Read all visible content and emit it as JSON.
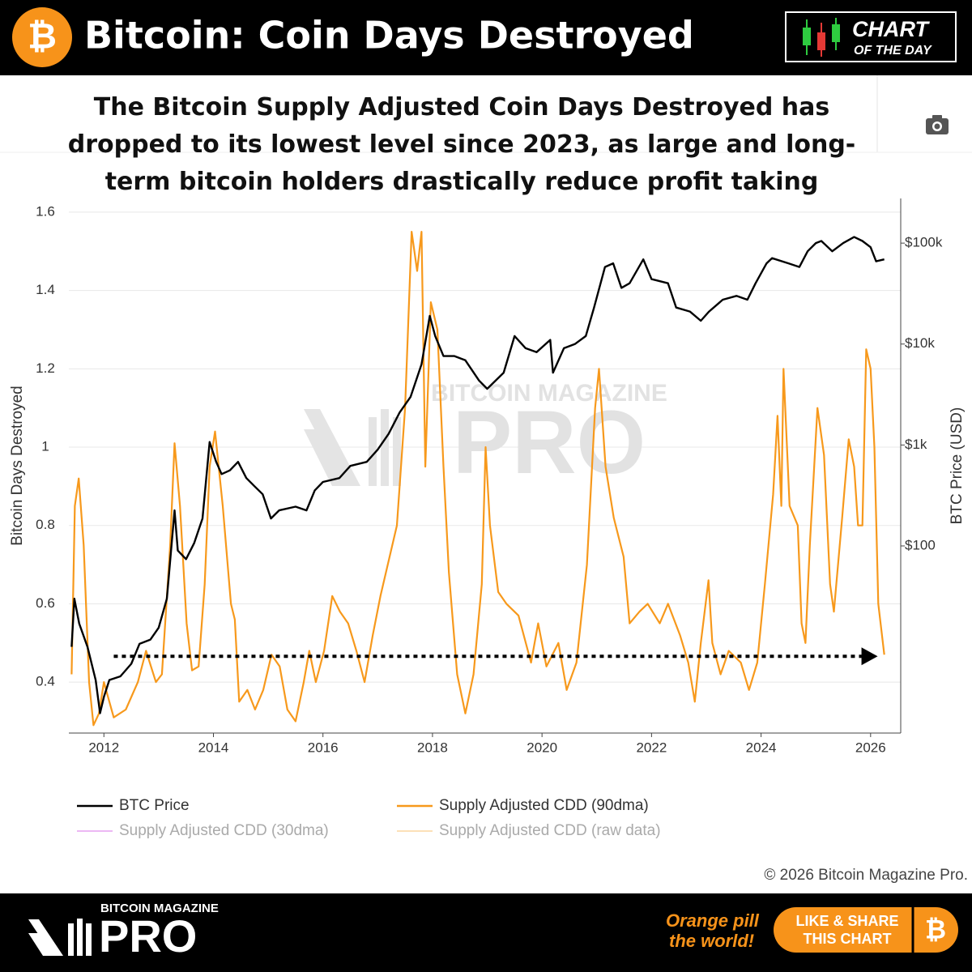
{
  "header": {
    "logo": "₿",
    "title": "Bitcoin: Coin Days Destroyed",
    "badge_line1": "CHART",
    "badge_line2": "OF THE DAY"
  },
  "watermark": {
    "line1": "BITCOIN MAGAZINE",
    "line2": "PRO"
  },
  "chart_data": {
    "type": "line",
    "title": "The Bitcoin Supply Adjusted Coin Days Destroyed has dropped to its lowest level since 2023, as large and long-term bitcoin holders drastically reduce profit taking",
    "ylabel": "Bitcoin Days Destroyed",
    "y2label": "BTC Price (USD)",
    "xlim": [
      2011.36,
      2026.55
    ],
    "xticks": [
      2012,
      2014,
      2016,
      2018,
      2020,
      2022,
      2024,
      2026
    ],
    "ylim": [
      0.27,
      1.635
    ],
    "yticks": [
      0.4,
      0.6,
      0.8,
      1,
      1.2,
      1.4,
      1.6
    ],
    "y2lim": [
      1.4,
      277000
    ],
    "y2log": true,
    "y2ticks": [
      {
        "value": 100,
        "label": "$100"
      },
      {
        "value": 1000,
        "label": "$1k"
      },
      {
        "value": 10000,
        "label": "$10k"
      },
      {
        "value": 100000,
        "label": "$100k"
      }
    ],
    "grid": true,
    "legend": "bottom",
    "series": [
      {
        "name": "BTC Price",
        "color": "#000000",
        "axis": "y2",
        "x": [
          2011.41,
          2011.46,
          2011.55,
          2011.7,
          2011.85,
          2011.93,
          2012.0,
          2012.1,
          2012.3,
          2012.5,
          2012.65,
          2012.85,
          2013.0,
          2013.15,
          2013.29,
          2013.35,
          2013.5,
          2013.65,
          2013.8,
          2013.93,
          2014.05,
          2014.15,
          2014.3,
          2014.45,
          2014.6,
          2014.75,
          2014.9,
          2015.05,
          2015.2,
          2015.5,
          2015.7,
          2015.85,
          2016.0,
          2016.3,
          2016.5,
          2016.8,
          2017.0,
          2017.2,
          2017.4,
          2017.6,
          2017.8,
          2017.95,
          2018.05,
          2018.2,
          2018.4,
          2018.6,
          2018.85,
          2019.0,
          2019.3,
          2019.5,
          2019.7,
          2019.9,
          2020.15,
          2020.2,
          2020.4,
          2020.6,
          2020.8,
          2020.95,
          2021.15,
          2021.3,
          2021.45,
          2021.6,
          2021.85,
          2022.0,
          2022.3,
          2022.45,
          2022.7,
          2022.9,
          2023.05,
          2023.3,
          2023.55,
          2023.75,
          2023.9,
          2024.1,
          2024.2,
          2024.5,
          2024.7,
          2024.85,
          2025.0,
          2025.1,
          2025.3,
          2025.5,
          2025.7,
          2025.85,
          2026.0,
          2026.1,
          2026.25
        ],
        "values": [
          10,
          30,
          17,
          10,
          4.7,
          2.2,
          3.2,
          4.7,
          5.1,
          6.8,
          10.7,
          11.8,
          15.5,
          30,
          225,
          90,
          74,
          107,
          187,
          1070,
          680,
          515,
          560,
          680,
          470,
          390,
          325,
          187,
          225,
          245,
          225,
          355,
          430,
          470,
          620,
          680,
          900,
          1290,
          2100,
          3000,
          6300,
          19000,
          12000,
          7600,
          7600,
          6900,
          4350,
          3600,
          5200,
          12000,
          9100,
          8300,
          11000,
          5200,
          9100,
          10000,
          12000,
          23000,
          58000,
          63000,
          36000,
          40000,
          69000,
          44000,
          40000,
          23000,
          21000,
          17000,
          21000,
          27500,
          30000,
          27500,
          40000,
          63000,
          71000,
          63000,
          58000,
          83000,
          100000,
          105000,
          83000,
          100000,
          115000,
          105000,
          91000,
          66000,
          69000
        ]
      },
      {
        "name": "Supply Adjusted CDD (90dma)",
        "color": "#f7991c",
        "x": [
          2011.41,
          2011.47,
          2011.54,
          2011.63,
          2011.73,
          2011.81,
          2011.91,
          2012.0,
          2012.1,
          2012.18,
          2012.4,
          2012.62,
          2012.77,
          2012.95,
          2013.06,
          2013.21,
          2013.29,
          2013.39,
          2013.51,
          2013.61,
          2013.73,
          2013.84,
          2013.93,
          2014.03,
          2014.17,
          2014.32,
          2014.39,
          2014.47,
          2014.62,
          2014.76,
          2014.91,
          2015.06,
          2015.21,
          2015.35,
          2015.5,
          2015.65,
          2015.75,
          2015.87,
          2016.02,
          2016.17,
          2016.31,
          2016.46,
          2016.61,
          2016.76,
          2016.91,
          2017.05,
          2017.35,
          2017.5,
          2017.62,
          2017.72,
          2017.8,
          2017.87,
          2017.97,
          2018.09,
          2018.2,
          2018.3,
          2018.45,
          2018.6,
          2018.75,
          2018.9,
          2018.97,
          2019.05,
          2019.2,
          2019.35,
          2019.57,
          2019.8,
          2019.93,
          2020.08,
          2020.3,
          2020.45,
          2020.63,
          2020.82,
          2020.97,
          2021.04,
          2021.16,
          2021.31,
          2021.49,
          2021.6,
          2021.78,
          2021.93,
          2022.15,
          2022.3,
          2022.52,
          2022.67,
          2022.79,
          2022.9,
          2023.04,
          2023.11,
          2023.26,
          2023.41,
          2023.63,
          2023.78,
          2023.93,
          2024.07,
          2024.22,
          2024.3,
          2024.37,
          2024.41,
          2024.52,
          2024.67,
          2024.74,
          2024.81,
          2024.89,
          2025.03,
          2025.15,
          2025.26,
          2025.33,
          2025.48,
          2025.6,
          2025.7,
          2025.77,
          2025.85,
          2025.92,
          2026.0,
          2026.07,
          2026.14,
          2026.25
        ],
        "values": [
          0.42,
          0.85,
          0.92,
          0.75,
          0.4,
          0.29,
          0.32,
          0.4,
          0.35,
          0.31,
          0.33,
          0.4,
          0.48,
          0.4,
          0.42,
          0.75,
          1.01,
          0.85,
          0.55,
          0.43,
          0.44,
          0.65,
          0.95,
          1.04,
          0.85,
          0.6,
          0.56,
          0.35,
          0.38,
          0.33,
          0.38,
          0.47,
          0.44,
          0.33,
          0.3,
          0.4,
          0.48,
          0.4,
          0.48,
          0.62,
          0.58,
          0.55,
          0.48,
          0.4,
          0.52,
          0.62,
          0.8,
          1.1,
          1.55,
          1.45,
          1.55,
          0.95,
          1.37,
          1.3,
          0.95,
          0.68,
          0.42,
          0.32,
          0.42,
          0.65,
          1.0,
          0.8,
          0.63,
          0.6,
          0.57,
          0.45,
          0.55,
          0.44,
          0.5,
          0.38,
          0.45,
          0.7,
          1.1,
          1.2,
          0.95,
          0.82,
          0.72,
          0.55,
          0.58,
          0.6,
          0.55,
          0.6,
          0.52,
          0.45,
          0.35,
          0.5,
          0.66,
          0.5,
          0.42,
          0.48,
          0.45,
          0.38,
          0.45,
          0.65,
          0.88,
          1.08,
          0.85,
          1.2,
          0.85,
          0.8,
          0.55,
          0.5,
          0.75,
          1.1,
          0.98,
          0.65,
          0.58,
          0.82,
          1.02,
          0.95,
          0.8,
          0.8,
          1.25,
          1.2,
          1.0,
          0.6,
          0.47
        ]
      },
      {
        "name": "Supply Adjusted CDD (30dma)",
        "color": "#e6a0f0",
        "visible": false,
        "x": [],
        "values": []
      },
      {
        "name": "Supply Adjusted CDD (raw data)",
        "color": "#fbd6a0",
        "visible": false,
        "x": [],
        "values": []
      }
    ],
    "annotations": [
      {
        "style": "dotted-arrow",
        "x": [
          2012.18,
          2026.07
        ],
        "y": 0.466
      }
    ]
  },
  "copyright": "© 2026 Bitcoin Magazine Pro.",
  "footer": {
    "brand_small": "BITCOIN MAGAZINE",
    "brand_big": "PRO",
    "slogan_line1": "Orange pill",
    "slogan_line2": "the world!",
    "button_line1": "LIKE & SHARE",
    "button_line2": "THIS CHART",
    "button_icon": "₿"
  }
}
